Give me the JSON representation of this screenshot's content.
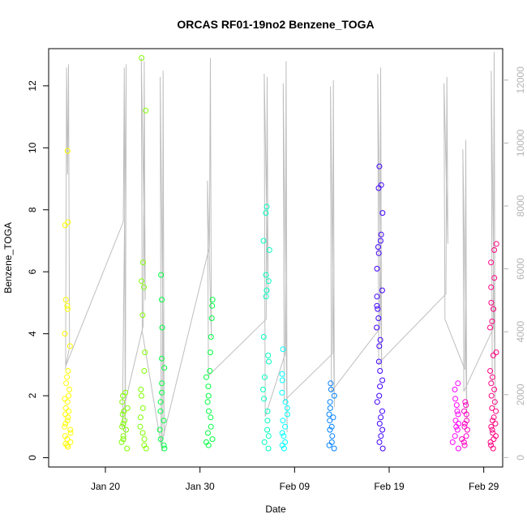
{
  "chart_data": {
    "type": "scatter",
    "title": "ORCAS RF01-19no2 Benzene_TOGA",
    "xlabel": "Date",
    "ylabel": "Benzene_TOGA",
    "xlim": [
      "2016-01-14",
      "2016-03-02"
    ],
    "ylim": [
      -0.3,
      13.2
    ],
    "x_ticks": [
      {
        "date": "2016-01-20",
        "label": "Jan 20"
      },
      {
        "date": "2016-01-30",
        "label": "Jan 30"
      },
      {
        "date": "2016-02-09",
        "label": "Feb 09"
      },
      {
        "date": "2016-02-19",
        "label": "Feb 19"
      },
      {
        "date": "2016-02-29",
        "label": "Feb 29"
      }
    ],
    "y_ticks": [
      0,
      2,
      4,
      6,
      8,
      10,
      12
    ],
    "secondary_axis": {
      "color": "#b3b3b3",
      "ylim": [
        -300,
        13000
      ],
      "ticks": [
        0,
        2000,
        4000,
        6000,
        8000,
        10000,
        12000
      ]
    },
    "grid": false,
    "series": [
      {
        "color": "#ffff00",
        "x": [
          "2016-01-16",
          "2016-01-16",
          "2016-01-16",
          "2016-01-16",
          "2016-01-16",
          "2016-01-16",
          "2016-01-16",
          "2016-01-16",
          "2016-01-16",
          "2016-01-16",
          "2016-01-16",
          "2016-01-16",
          "2016-01-16",
          "2016-01-16",
          "2016-01-16",
          "2016-01-16",
          "2016-01-16",
          "2016-01-16",
          "2016-01-16",
          "2016-01-16",
          "2016-01-16",
          "2016-01-16",
          "2016-01-16",
          "2016-01-16",
          "2016-01-16",
          "2016-01-16",
          "2016-01-16",
          "2016-01-16",
          "2016-01-16",
          "2016-01-16"
        ],
        "y": [
          9.9,
          7.6,
          7.5,
          5.1,
          4.9,
          4.8,
          4.0,
          3.6,
          2.8,
          2.6,
          2.4,
          2.2,
          2.0,
          1.9,
          1.8,
          1.6,
          1.5,
          1.4,
          1.3,
          1.2,
          1.1,
          1.0,
          0.9,
          0.8,
          0.7,
          0.6,
          0.5,
          0.45,
          0.4,
          0.35
        ]
      },
      {
        "color": "#80ff00",
        "x": [
          "2016-01-22",
          "2016-01-22",
          "2016-01-22",
          "2016-01-22",
          "2016-01-22",
          "2016-01-22",
          "2016-01-22",
          "2016-01-22",
          "2016-01-22",
          "2016-01-22",
          "2016-01-22",
          "2016-01-22",
          "2016-01-22",
          "2016-01-22",
          "2016-01-24",
          "2016-01-24",
          "2016-01-24",
          "2016-01-24",
          "2016-01-24",
          "2016-01-24",
          "2016-01-24",
          "2016-01-24",
          "2016-01-24",
          "2016-01-24",
          "2016-01-24",
          "2016-01-24",
          "2016-01-24",
          "2016-01-24",
          "2016-01-24",
          "2016-01-24",
          "2016-01-24"
        ],
        "y": [
          2.1,
          2.0,
          1.8,
          1.6,
          1.5,
          1.4,
          1.2,
          1.1,
          1.0,
          0.9,
          0.7,
          0.6,
          0.5,
          0.3,
          12.9,
          11.2,
          6.3,
          5.7,
          5.5,
          4.6,
          3.4,
          2.8,
          2.2,
          2.0,
          1.6,
          1.3,
          1.0,
          0.8,
          0.6,
          0.4,
          0.3
        ]
      },
      {
        "color": "#00ff40",
        "x": [
          "2016-01-26",
          "2016-01-26",
          "2016-01-26",
          "2016-01-26",
          "2016-01-26",
          "2016-01-26",
          "2016-01-26",
          "2016-01-26",
          "2016-01-26",
          "2016-01-26",
          "2016-01-26",
          "2016-01-26",
          "2016-01-26",
          "2016-01-26",
          "2016-01-31",
          "2016-01-31",
          "2016-01-31",
          "2016-01-31",
          "2016-01-31",
          "2016-01-31",
          "2016-01-31",
          "2016-01-31",
          "2016-01-31",
          "2016-01-31",
          "2016-01-31",
          "2016-01-31",
          "2016-01-31",
          "2016-01-31",
          "2016-01-31",
          "2016-01-31",
          "2016-01-31"
        ],
        "y": [
          5.9,
          5.1,
          4.2,
          3.2,
          2.9,
          2.4,
          2.1,
          1.8,
          1.5,
          1.2,
          0.9,
          0.6,
          0.4,
          0.3,
          5.1,
          4.9,
          4.5,
          3.9,
          3.4,
          2.8,
          2.6,
          2.3,
          2.0,
          1.8,
          1.5,
          1.3,
          1.0,
          0.8,
          0.6,
          0.5,
          0.4
        ]
      },
      {
        "color": "#00ffc0",
        "x": [
          "2016-02-06",
          "2016-02-06",
          "2016-02-06",
          "2016-02-06",
          "2016-02-06",
          "2016-02-06",
          "2016-02-06",
          "2016-02-06",
          "2016-02-06",
          "2016-02-06",
          "2016-02-06",
          "2016-02-06",
          "2016-02-06",
          "2016-02-06",
          "2016-02-06",
          "2016-02-06",
          "2016-02-06",
          "2016-02-06",
          "2016-02-06",
          "2016-02-06"
        ],
        "y": [
          8.1,
          7.9,
          7.0,
          6.7,
          5.9,
          5.7,
          5.4,
          5.2,
          3.9,
          3.3,
          3.1,
          2.6,
          2.2,
          1.9,
          1.5,
          1.2,
          0.9,
          0.7,
          0.5,
          0.3
        ]
      },
      {
        "color": "#00ffff",
        "x": [
          "2016-02-08",
          "2016-02-08",
          "2016-02-08",
          "2016-02-08",
          "2016-02-08",
          "2016-02-08",
          "2016-02-08",
          "2016-02-08",
          "2016-02-08",
          "2016-02-08",
          "2016-02-08",
          "2016-02-08",
          "2016-02-08",
          "2016-02-08"
        ],
        "y": [
          3.5,
          2.7,
          2.5,
          2.1,
          1.8,
          1.6,
          1.4,
          1.2,
          1.0,
          0.8,
          0.7,
          0.5,
          0.4,
          0.3
        ]
      },
      {
        "color": "#0080ff",
        "x": [
          "2016-02-13",
          "2016-02-13",
          "2016-02-13",
          "2016-02-13",
          "2016-02-13",
          "2016-02-13",
          "2016-02-13",
          "2016-02-13",
          "2016-02-13",
          "2016-02-13",
          "2016-02-13",
          "2016-02-13",
          "2016-02-13",
          "2016-02-13"
        ],
        "y": [
          2.4,
          2.2,
          2.0,
          1.8,
          1.6,
          1.4,
          1.3,
          1.2,
          1.0,
          0.9,
          0.7,
          0.5,
          0.4,
          0.3
        ]
      },
      {
        "color": "#4000ff",
        "x": [
          "2016-02-18",
          "2016-02-18",
          "2016-02-18",
          "2016-02-18",
          "2016-02-18",
          "2016-02-18",
          "2016-02-18",
          "2016-02-18",
          "2016-02-18",
          "2016-02-18",
          "2016-02-18",
          "2016-02-18",
          "2016-02-18",
          "2016-02-18",
          "2016-02-18",
          "2016-02-18",
          "2016-02-18",
          "2016-02-18",
          "2016-02-18",
          "2016-02-18",
          "2016-02-18",
          "2016-02-18",
          "2016-02-18",
          "2016-02-18",
          "2016-02-18",
          "2016-02-18",
          "2016-02-18",
          "2016-02-18",
          "2016-02-18",
          "2016-02-18"
        ],
        "y": [
          9.4,
          8.8,
          8.7,
          7.9,
          7.2,
          7.0,
          6.8,
          6.6,
          6.1,
          5.4,
          5.2,
          4.9,
          4.8,
          4.5,
          4.2,
          3.8,
          3.6,
          3.1,
          2.8,
          2.5,
          2.3,
          2.0,
          1.8,
          1.5,
          1.3,
          1.1,
          0.9,
          0.7,
          0.5,
          0.3
        ]
      },
      {
        "color": "#ff00ff",
        "x": [
          "2016-02-26",
          "2016-02-26",
          "2016-02-26",
          "2016-02-26",
          "2016-02-26",
          "2016-02-26",
          "2016-02-26",
          "2016-02-26",
          "2016-02-26",
          "2016-02-26",
          "2016-02-26",
          "2016-02-26",
          "2016-02-26"
        ],
        "y": [
          2.4,
          2.2,
          1.9,
          1.7,
          1.5,
          1.4,
          1.2,
          1.1,
          1.0,
          0.9,
          0.7,
          0.5,
          0.3
        ]
      },
      {
        "color": "#ff00c0",
        "x": [
          "2016-02-27",
          "2016-02-27",
          "2016-02-27",
          "2016-02-27",
          "2016-02-27",
          "2016-02-27",
          "2016-02-27",
          "2016-02-27",
          "2016-02-27",
          "2016-02-27",
          "2016-02-27",
          "2016-02-27"
        ],
        "y": [
          1.8,
          1.7,
          1.5,
          1.4,
          1.2,
          1.1,
          1.0,
          0.9,
          0.7,
          0.6,
          0.5,
          0.4
        ]
      },
      {
        "color": "#ff0080",
        "x": [
          "2016-03-01",
          "2016-03-01",
          "2016-03-01",
          "2016-03-01",
          "2016-03-01",
          "2016-03-01",
          "2016-03-01",
          "2016-03-01",
          "2016-03-01",
          "2016-03-01",
          "2016-03-01",
          "2016-03-01",
          "2016-03-01",
          "2016-03-01",
          "2016-03-01",
          "2016-03-01",
          "2016-03-01",
          "2016-03-01",
          "2016-03-01",
          "2016-03-01",
          "2016-03-01",
          "2016-03-01",
          "2016-03-01",
          "2016-03-01",
          "2016-03-01",
          "2016-03-01",
          "2016-03-01",
          "2016-03-01",
          "2016-03-01",
          "2016-03-01"
        ],
        "y": [
          6.9,
          6.7,
          6.3,
          5.8,
          5.5,
          5.0,
          4.8,
          4.4,
          4.2,
          3.4,
          3.3,
          2.8,
          2.6,
          2.4,
          2.2,
          2.0,
          1.8,
          1.6,
          1.5,
          1.3,
          1.2,
          1.1,
          1.0,
          0.9,
          0.8,
          0.7,
          0.6,
          0.5,
          0.4,
          0.3
        ]
      }
    ],
    "secondary_series": {
      "color": "#bebebe",
      "type": "line",
      "x": [
        "2016-01-16",
        "2016-01-16",
        "2016-01-16",
        "2016-01-16",
        "2016-01-16",
        "2016-01-16",
        "2016-01-22",
        "2016-01-22",
        "2016-01-22",
        "2016-01-22",
        "2016-01-22",
        "2016-01-22",
        "2016-01-24",
        "2016-01-24",
        "2016-01-24",
        "2016-01-24",
        "2016-01-24",
        "2016-01-26",
        "2016-01-26",
        "2016-01-26",
        "2016-01-26",
        "2016-01-26",
        "2016-01-31",
        "2016-01-31",
        "2016-01-31",
        "2016-01-31",
        "2016-01-31",
        "2016-02-06",
        "2016-02-06",
        "2016-02-06",
        "2016-02-06",
        "2016-02-06",
        "2016-02-08",
        "2016-02-08",
        "2016-02-08",
        "2016-02-08",
        "2016-02-08",
        "2016-02-13",
        "2016-02-13",
        "2016-02-13",
        "2016-02-13",
        "2016-02-13",
        "2016-02-18",
        "2016-02-18",
        "2016-02-18",
        "2016-02-18",
        "2016-02-18",
        "2016-02-25",
        "2016-02-25",
        "2016-02-25",
        "2016-02-25",
        "2016-02-25",
        "2016-02-27",
        "2016-02-27",
        "2016-02-27",
        "2016-02-27",
        "2016-02-27",
        "2016-03-01",
        "2016-03-01",
        "2016-03-01",
        "2016-03-01",
        "2016-03-01"
      ],
      "y": [
        2800,
        12400,
        9000,
        12500,
        3500,
        2900,
        7500,
        12400,
        500,
        12500,
        900,
        1500,
        4200,
        12600,
        5000,
        12700,
        4000,
        200,
        12300,
        700,
        12100,
        400,
        6700,
        12700,
        3800,
        8800,
        2600,
        4400,
        12100,
        5200,
        12200,
        1300,
        3300,
        12600,
        800,
        11900,
        1800,
        3300,
        12000,
        1600,
        11800,
        2100,
        4100,
        12400,
        2800,
        12200,
        3000,
        5200,
        12100,
        6800,
        11900,
        4400,
        2800,
        10100,
        1200,
        9800,
        2100,
        4100,
        12900,
        1600,
        12300,
        2400
      ]
    }
  }
}
